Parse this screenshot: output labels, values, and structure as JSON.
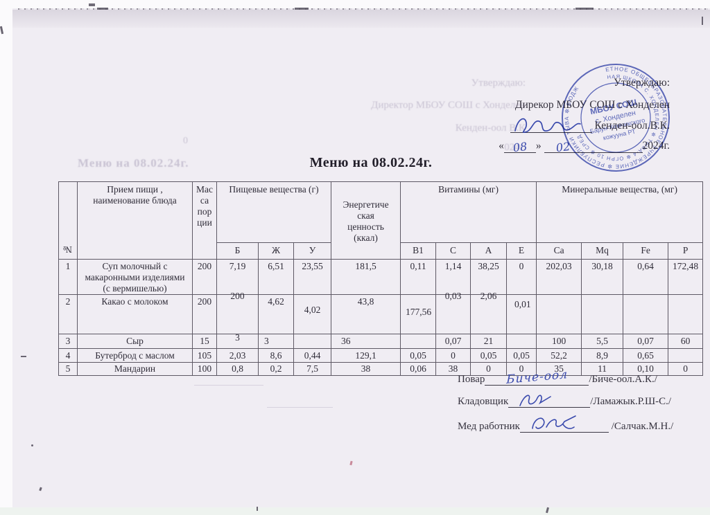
{
  "title": "Меню на 08.02.24г.",
  "approval": {
    "label": "Утверждаю:",
    "director_line": "Дирекор  МБОУ СОШ с Хонделен",
    "director_name": "Кенден-оол.В.К.",
    "date": {
      "open": "«",
      "day": "08",
      "close": "»",
      "month": "02",
      "year": "2024г."
    }
  },
  "ghost": {
    "label": "Утверждаю:",
    "director_line": "Директор МБОУ СОШ с Хонделен",
    "director_name": "Кенден-оол В.К",
    "year": "024г.",
    "title": "Меню на 08.02.24г.",
    "zero": "0"
  },
  "stamp": {
    "ring_outer": "ЕТНОЕ ОБЩЕОБРАЗОВАТЕЛЬНОЕ УЧРЕЖДЕНИЕ ✼ РЕСПУБЛИКИ ТЫВА ✼ БЮДЖ",
    "ring_inner": "НАЯ ШКОЛА С. ХОНДЕЛЕН ✼ ТЫВА-4 ✼ ОГРН 10 ✼ СРЕД",
    "center_lines": [
      "МБОУ СОШ",
      "с. Хонделен",
      "Барун-Хемчикского",
      "кожууна РТ"
    ]
  },
  "table": {
    "headers": {
      "num": "№",
      "dish": "Прием пищи ,\nнаименование блюда",
      "mass": "Мас\nса\nпор\nции",
      "nutrients": "Пищевые вещества (г)",
      "energy": "Энергетиче\nская\nценность\n(ккал)",
      "vitamins": "Витамины (мг)",
      "minerals": "Минеральные вещества, (мг)",
      "sub": [
        "Б",
        "Ж",
        "У",
        "B1",
        "C",
        "A",
        "E",
        "Ca",
        "Mq",
        "Fe",
        "P"
      ]
    },
    "rows": [
      {
        "num": "1",
        "dish": "Суп молочный с\nмакаронными изделиями\n(с вермишелью)",
        "mass": "200",
        "cells": [
          "7,19",
          "6,51",
          "23,55",
          "181,5",
          "0,11",
          "1,14",
          "38,25",
          "0",
          "202,03",
          "30,18",
          "0,64",
          "172,48"
        ]
      },
      {
        "num": "2",
        "dish": "Какао с молоком",
        "mass": "200",
        "cells": [
          "200",
          "4,62",
          "4,02",
          "43,8",
          "177,56",
          "0,03",
          "2,06",
          "0,01",
          "",
          "",
          "",
          ""
        ]
      },
      {
        "num": "3",
        "dish": "Сыр",
        "mass": "15",
        "cells": [
          "3",
          "3",
          "",
          "36",
          "",
          "0,07",
          "21",
          "",
          "100",
          "5,5",
          "0,07",
          "60"
        ]
      },
      {
        "num": "4",
        "dish": "Бутерброд  с маслом",
        "mass": "105",
        "cells": [
          "2,03",
          "8,6",
          "0,44",
          "129,1",
          "0,05",
          "0",
          "0,05",
          "0,05",
          "52,2",
          "8,9",
          "0,65",
          ""
        ]
      },
      {
        "num": "5",
        "dish": "Мандарин",
        "mass": "100",
        "cells": [
          "0,8",
          "0,2",
          "7,5",
          "38",
          "0,06",
          "38",
          "0",
          "0",
          "35",
          "11",
          "0,10",
          "0"
        ]
      }
    ]
  },
  "signatures": {
    "rows": [
      {
        "role": "Повар",
        "handwriting": "Биче-оол",
        "name": "/Биче-оол.А.К./"
      },
      {
        "role": "Кладовщик",
        "handwriting": "",
        "name": "/Ламажык.Р.Ш-С./"
      },
      {
        "role": "Мед работник",
        "handwriting": "",
        "name": "/Салчак.М.Н./"
      }
    ]
  },
  "colors": {
    "ink": "#35323e",
    "stamp_blue": "#4656b6",
    "signature_blue": "#3a4aad",
    "ghost": "#c9c3d3"
  }
}
